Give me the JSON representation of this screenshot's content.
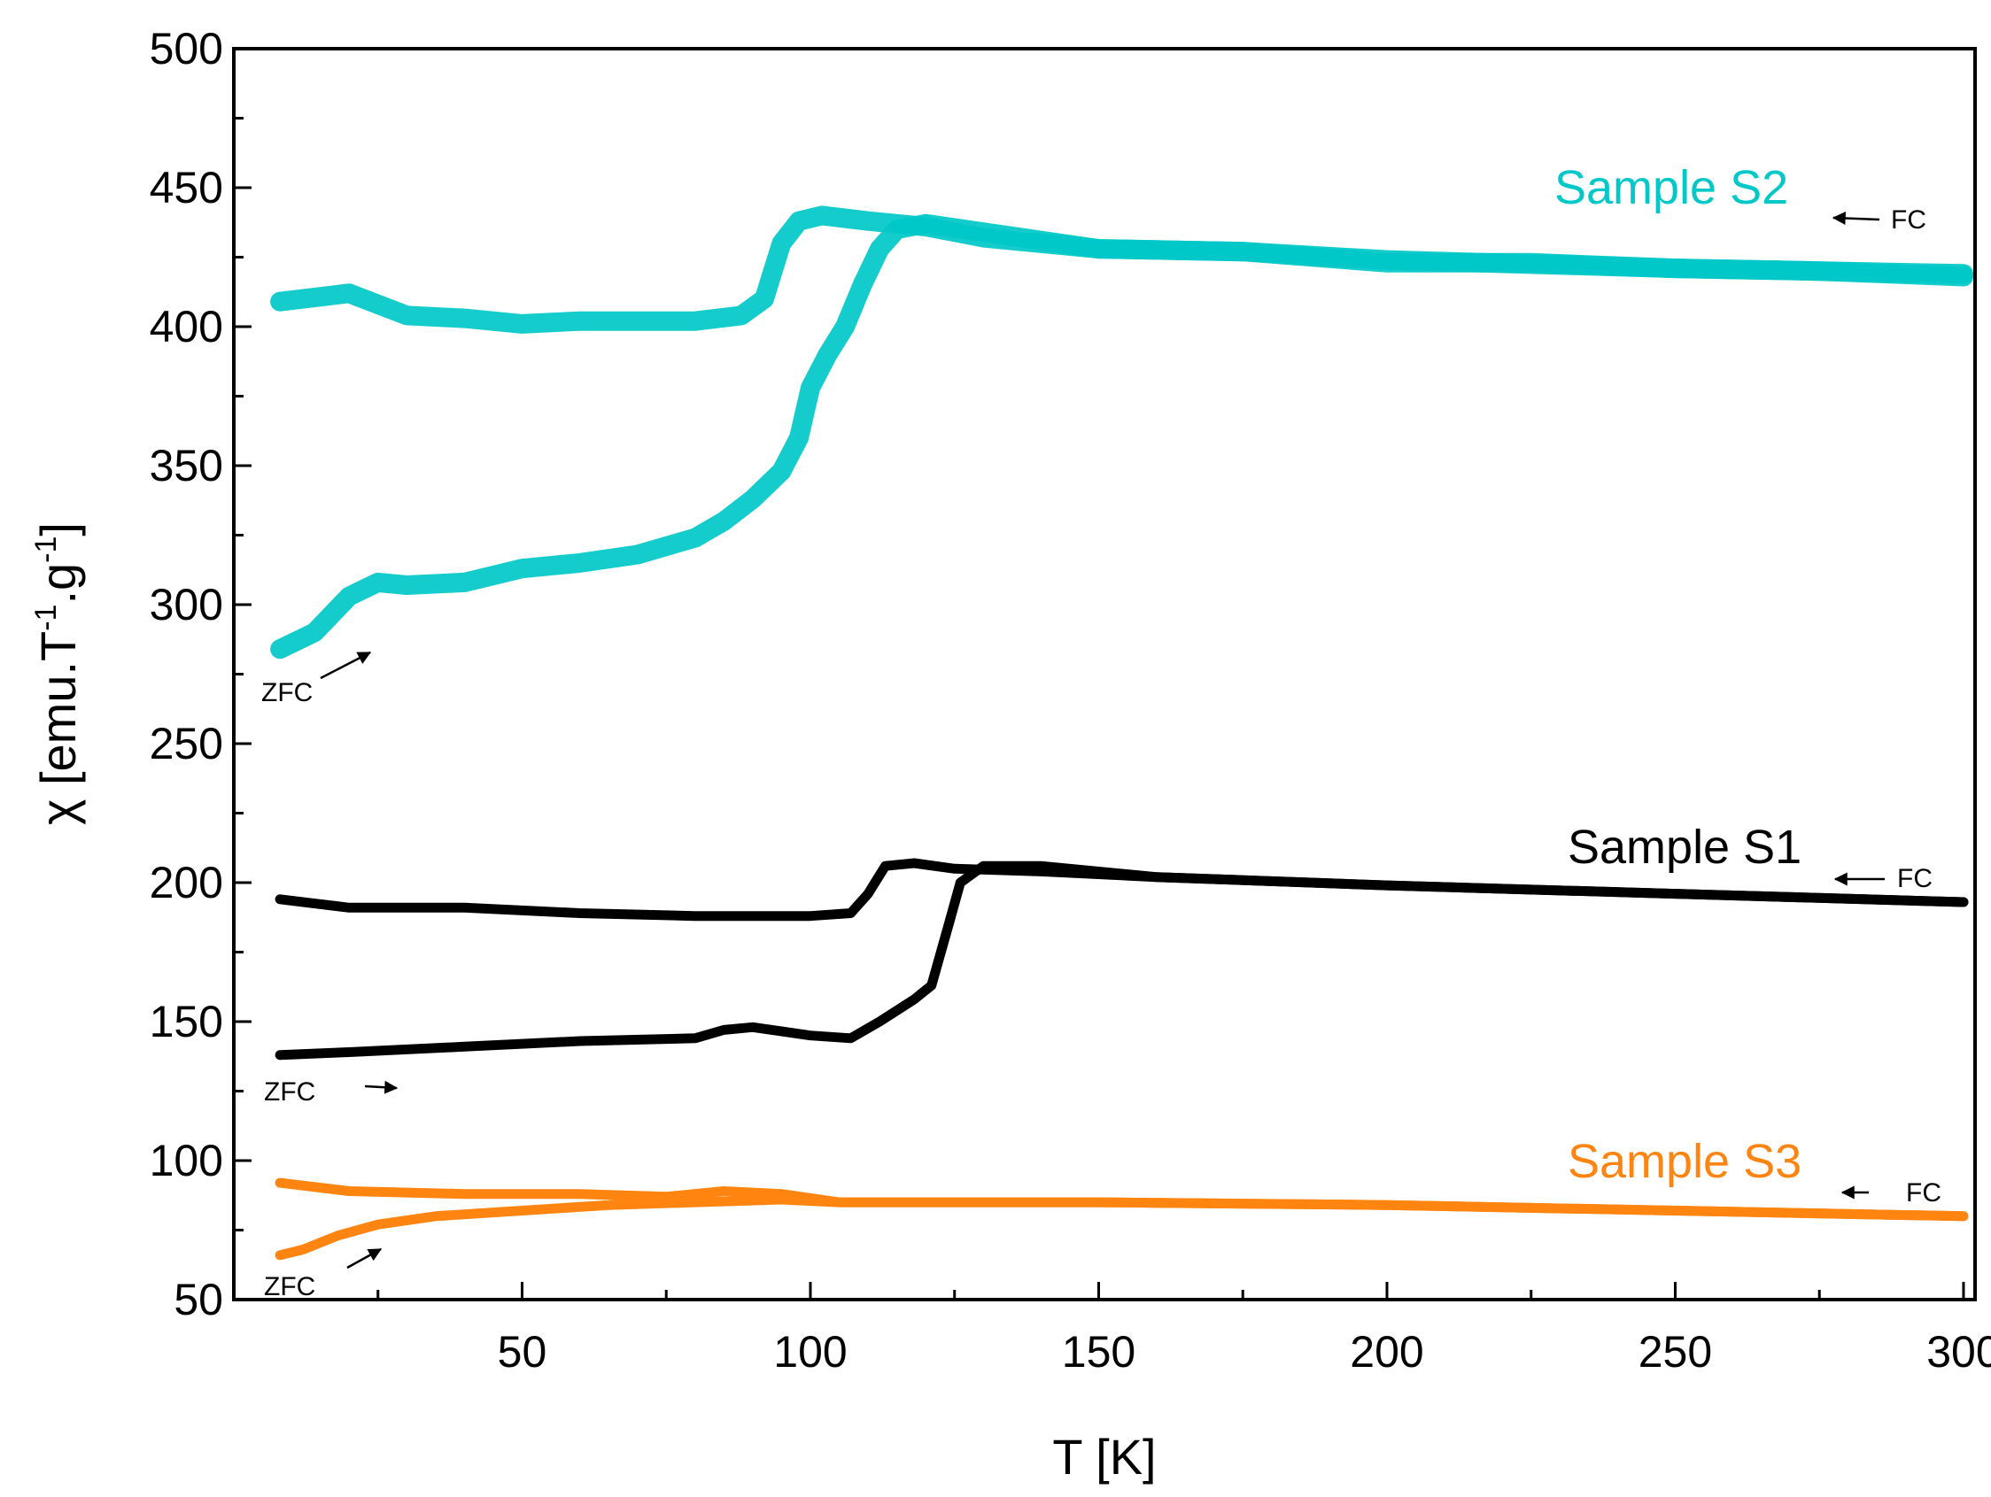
{
  "chart_data": {
    "type": "line",
    "title": "",
    "xlabel": "T [K]",
    "ylabel": "χ [emu.T-1.g-1]",
    "ylabel_parts": {
      "base": "χ [emu.T",
      "exp1": "-1",
      "mid": ".g",
      "exp2": "-1",
      "end": "]"
    },
    "xlim": [
      0,
      302
    ],
    "ylim": [
      50,
      500
    ],
    "xticks": [
      50,
      100,
      150,
      200,
      250,
      300
    ],
    "yticks": [
      50,
      100,
      150,
      200,
      250,
      300,
      350,
      400,
      450,
      500
    ],
    "grid": false,
    "series": [
      {
        "name": "Sample S2",
        "curve": "FC",
        "color": "#00c8c8",
        "points": [
          [
            8,
            409
          ],
          [
            20,
            412
          ],
          [
            30,
            404
          ],
          [
            40,
            403
          ],
          [
            50,
            401
          ],
          [
            60,
            402
          ],
          [
            70,
            402
          ],
          [
            80,
            402
          ],
          [
            88,
            404
          ],
          [
            92,
            410
          ],
          [
            95,
            430
          ],
          [
            98,
            438
          ],
          [
            102,
            440
          ],
          [
            110,
            438
          ],
          [
            120,
            436
          ],
          [
            130,
            432
          ],
          [
            150,
            428
          ],
          [
            175,
            427
          ],
          [
            200,
            423
          ],
          [
            225,
            423
          ],
          [
            250,
            421
          ],
          [
            275,
            420
          ],
          [
            300,
            418
          ]
        ]
      },
      {
        "name": "Sample S2",
        "curve": "ZFC",
        "color": "#00c8c8",
        "points": [
          [
            8,
            284
          ],
          [
            14,
            290
          ],
          [
            20,
            303
          ],
          [
            25,
            308
          ],
          [
            30,
            307
          ],
          [
            40,
            308
          ],
          [
            50,
            313
          ],
          [
            60,
            315
          ],
          [
            70,
            318
          ],
          [
            80,
            324
          ],
          [
            85,
            330
          ],
          [
            90,
            338
          ],
          [
            95,
            348
          ],
          [
            98,
            360
          ],
          [
            100,
            378
          ],
          [
            103,
            390
          ],
          [
            106,
            400
          ],
          [
            109,
            415
          ],
          [
            112,
            428
          ],
          [
            115,
            435
          ],
          [
            120,
            437
          ],
          [
            130,
            434
          ],
          [
            150,
            428
          ],
          [
            175,
            427
          ],
          [
            200,
            424
          ],
          [
            250,
            421
          ],
          [
            300,
            419
          ]
        ]
      },
      {
        "name": "Sample S1",
        "curve": "FC",
        "color": "#000000",
        "points": [
          [
            8,
            194
          ],
          [
            20,
            191
          ],
          [
            40,
            191
          ],
          [
            60,
            189
          ],
          [
            80,
            188
          ],
          [
            100,
            188
          ],
          [
            107,
            189
          ],
          [
            110,
            196
          ],
          [
            113,
            206
          ],
          [
            118,
            207
          ],
          [
            125,
            205
          ],
          [
            140,
            204
          ],
          [
            160,
            202
          ],
          [
            200,
            199
          ],
          [
            250,
            196
          ],
          [
            300,
            193
          ]
        ]
      },
      {
        "name": "Sample S1",
        "curve": "ZFC",
        "color": "#000000",
        "points": [
          [
            8,
            138
          ],
          [
            20,
            139
          ],
          [
            40,
            141
          ],
          [
            60,
            143
          ],
          [
            80,
            144
          ],
          [
            85,
            147
          ],
          [
            90,
            148
          ],
          [
            100,
            145
          ],
          [
            107,
            144
          ],
          [
            112,
            150
          ],
          [
            118,
            158
          ],
          [
            121,
            163
          ],
          [
            124,
            185
          ],
          [
            126,
            200
          ],
          [
            130,
            206
          ],
          [
            140,
            206
          ],
          [
            160,
            202
          ],
          [
            200,
            199
          ],
          [
            250,
            196
          ],
          [
            300,
            193
          ]
        ]
      },
      {
        "name": "Sample S3",
        "curve": "FC",
        "color": "#ff8410",
        "points": [
          [
            8,
            92
          ],
          [
            20,
            89
          ],
          [
            40,
            88
          ],
          [
            60,
            88
          ],
          [
            75,
            87
          ],
          [
            85,
            89
          ],
          [
            95,
            88
          ],
          [
            105,
            85
          ],
          [
            120,
            85
          ],
          [
            150,
            85
          ],
          [
            200,
            84
          ],
          [
            250,
            82
          ],
          [
            300,
            80
          ]
        ]
      },
      {
        "name": "Sample S3",
        "curve": "ZFC",
        "color": "#ff8410",
        "points": [
          [
            8,
            66
          ],
          [
            12,
            68
          ],
          [
            18,
            73
          ],
          [
            25,
            77
          ],
          [
            35,
            80
          ],
          [
            50,
            82
          ],
          [
            65,
            84
          ],
          [
            80,
            85
          ],
          [
            95,
            86
          ],
          [
            105,
            85
          ],
          [
            120,
            85
          ],
          [
            150,
            85
          ],
          [
            200,
            84
          ],
          [
            250,
            82
          ],
          [
            300,
            80
          ]
        ]
      }
    ],
    "annotations": [
      {
        "name": "Sample S2",
        "color": "#00c8c8",
        "fc_label": "FC",
        "zfc_label": "ZFC"
      },
      {
        "name": "Sample S1",
        "color": "#000000",
        "fc_label": "FC",
        "zfc_label": "ZFC"
      },
      {
        "name": "Sample S3",
        "color": "#ff8410",
        "fc_label": "FC",
        "zfc_label": "ZFC"
      }
    ]
  }
}
